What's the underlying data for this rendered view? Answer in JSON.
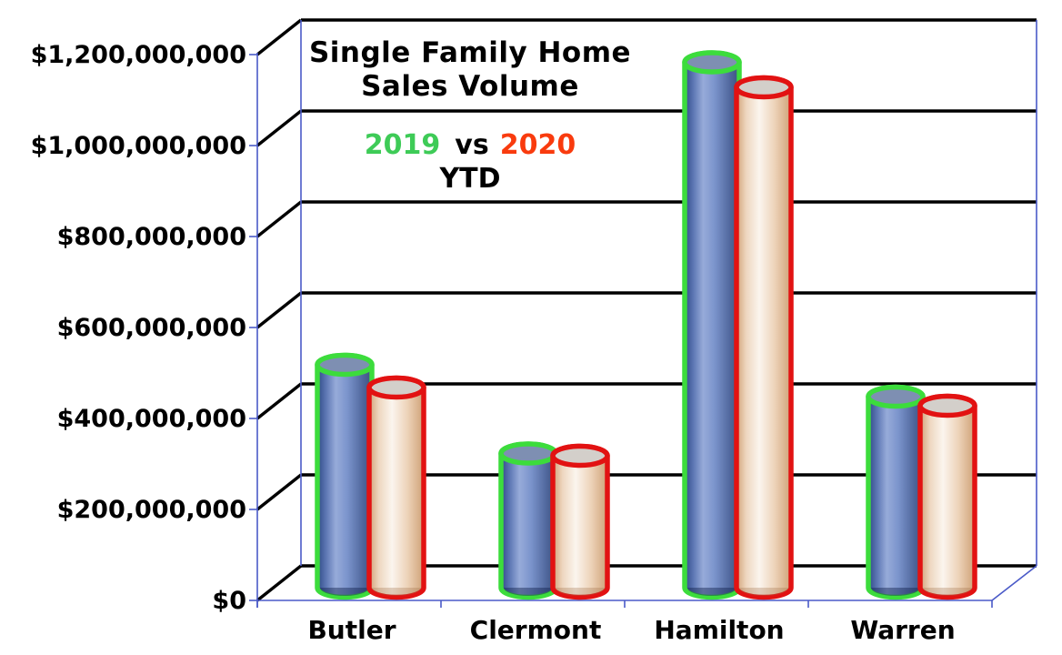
{
  "chart_data": {
    "type": "bar",
    "variant": "3d-cylinder-clustered",
    "title": "Single Family Home",
    "title_line2": "Sales Volume",
    "subtitle": {
      "series1": "2019",
      "vs": "vs",
      "series2": "2020",
      "line2": "YTD"
    },
    "categories": [
      "Butler",
      "Clermont",
      "Hamilton",
      "Warren"
    ],
    "series": [
      {
        "name": "2019",
        "outline_color": "#3cdc3c",
        "fill_style": "blue-cylinder",
        "values": [
          490000000,
          295000000,
          1155000000,
          420000000
        ]
      },
      {
        "name": "2020",
        "outline_color": "#e21212",
        "fill_style": "peach-cylinder",
        "values": [
          440000000,
          290000000,
          1100000000,
          400000000
        ]
      }
    ],
    "xlabel": "",
    "ylabel": "",
    "ylim": [
      0,
      1200000000
    ],
    "ytick_interval": 200000000,
    "yticks": [
      "$0",
      "$200,000,000",
      "$400,000,000",
      "$600,000,000",
      "$800,000,000",
      "$1,000,000,000",
      "$1,200,000,000"
    ],
    "grid": "horizontal-back-wall",
    "legend_position": "in-title-colored-text"
  },
  "colors": {
    "title_text": "#000000",
    "series1_text_green": "#3ecb57",
    "series2_text_red": "#f93b0e",
    "bar_outline_green": "#3cdc3c",
    "bar_outline_red": "#e21212",
    "axis_blue": "#4a5ac8",
    "gridline_black": "#000000",
    "blue_cylinder_top": "#7e8fb2",
    "peach_cylinder_top": "#d3cfca"
  }
}
